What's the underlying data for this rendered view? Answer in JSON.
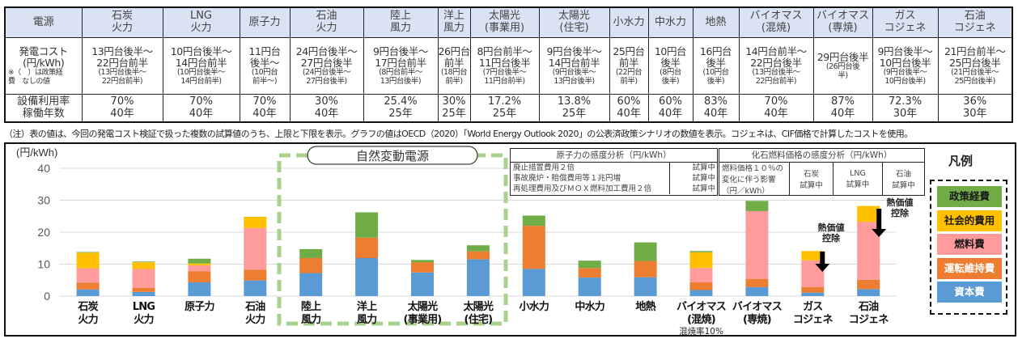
{
  "table": {
    "header_label": "電源",
    "columns": [
      [
        "石炭",
        "火力"
      ],
      [
        "LNG",
        "火力"
      ],
      [
        "原子力"
      ],
      [
        "石油",
        "火力"
      ],
      [
        "陸上",
        "風力"
      ],
      [
        "洋上",
        "風力"
      ],
      [
        "太陽光",
        "(事業用)"
      ],
      [
        "太陽光",
        "(住宅)"
      ],
      [
        "小水力"
      ],
      [
        "中水力"
      ],
      [
        "地熱"
      ],
      [
        "バイオマス",
        "(混焼)"
      ],
      [
        "バイオマス",
        "(専焼)"
      ],
      [
        "ガス",
        "コジェネ"
      ],
      [
        "石油",
        "コジェネ"
      ]
    ],
    "cost_label": [
      "発電コスト",
      "(円/kWh)"
    ],
    "cost_note": [
      "※（　）は政策経",
      "費　なしの値"
    ],
    "cost": [
      {
        "main": [
          "13円台後半〜",
          "22円台前半"
        ],
        "sub": [
          "(13円台後半〜",
          "22円台前半)"
        ]
      },
      {
        "main": [
          "10円台後半〜",
          "14円台前半"
        ],
        "sub": [
          "(10円台後半〜",
          "14円台前半)"
        ]
      },
      {
        "main": [
          "11円台",
          "後半〜"
        ],
        "sub": [
          "(10円台",
          "前半〜)"
        ]
      },
      {
        "main": [
          "24円台後半〜",
          "27円台後半"
        ],
        "sub": [
          "(24円台後半〜",
          "27円台後半)"
        ]
      },
      {
        "main": [
          "9円台後半〜",
          "17円台前半"
        ],
        "sub": [
          "(8円台前半〜",
          "13円台後半)"
        ]
      },
      {
        "main": [
          "26円台",
          "前半"
        ],
        "sub": [
          "(18円台",
          "前半)"
        ]
      },
      {
        "main": [
          "8円台前半〜",
          "11円台後半"
        ],
        "sub": [
          "(7円台後半〜",
          "11円台前半)"
        ]
      },
      {
        "main": [
          "9円台後半〜",
          "14円台前半"
        ],
        "sub": [
          "(9円台後半〜",
          "13円台後半)"
        ]
      },
      {
        "main": [
          "25円台",
          "前半"
        ],
        "sub": [
          "(22円台",
          "前半)"
        ]
      },
      {
        "main": [
          "10円台",
          "後半"
        ],
        "sub": [
          "(8円台",
          "後半)"
        ]
      },
      {
        "main": [
          "16円台",
          "後半"
        ],
        "sub": [
          "(10円台",
          "後半)"
        ]
      },
      {
        "main": [
          "14円台前半〜",
          "22円台後半"
        ],
        "sub": [
          "(13円台後半〜",
          "22円台前半)"
        ]
      },
      {
        "main": [
          "29円台後半"
        ],
        "sub": [
          "(26円台後",
          "半)"
        ]
      },
      {
        "main": [
          "9円台後半〜",
          "10円台後半"
        ],
        "sub": [
          "(9円台後半〜",
          "10円台後半)"
        ]
      },
      {
        "main": [
          "21円台前半〜",
          "25円台後半"
        ],
        "sub": [
          "(21円台後半〜",
          "25円台後半)"
        ]
      }
    ],
    "rate_label": [
      "設備利用率",
      "稼働年数"
    ],
    "rate": [
      [
        "70%",
        "40年"
      ],
      [
        "70%",
        "40年"
      ],
      [
        "70%",
        "40年"
      ],
      [
        "30%",
        "40年"
      ],
      [
        "25.4%",
        "25年"
      ],
      [
        "30%",
        "25年"
      ],
      [
        "17.2%",
        "25年"
      ],
      [
        "13.8%",
        "25年"
      ],
      [
        "60%",
        "40年"
      ],
      [
        "60%",
        "40年"
      ],
      [
        "83%",
        "40年"
      ],
      [
        "70%",
        "40年"
      ],
      [
        "87%",
        "40年"
      ],
      [
        "72.3%",
        "30年"
      ],
      [
        "36%",
        "30年"
      ]
    ]
  },
  "note": "（注）表の値は、今回の発電コスト検証で扱った複数の試算値のうち、上限と下限を表示。グラフの値はOECD（2020）「World Energy Outlook 2020」の公表済政策シナリオの数値を表示。コジェネは、CIF価格で計算したコストを使用。",
  "nuclear_sensitivity": {
    "title": "原子力の感度分析（円/kWh）",
    "rows": [
      [
        "廃止措置費用２倍",
        "試算中"
      ],
      [
        "事故廃炉・賠償費用等１兆円増",
        "試算中"
      ],
      [
        "再処理費用及びＭＯＸ燃料加工費用２倍",
        "試算中"
      ]
    ]
  },
  "fossil_sensitivity": {
    "title": "化石燃料価格の感度分析（円/kWh）",
    "label": [
      "燃料価格１０％の",
      "変化に伴う影響",
      "（円／kWh）"
    ],
    "cols": [
      [
        "石炭",
        "試算中"
      ],
      [
        "LNG",
        "試算中"
      ],
      [
        "石油",
        "試算中"
      ]
    ]
  },
  "legend": {
    "title": "凡例",
    "items": [
      {
        "key": "policy",
        "label": "政策経費",
        "color": "#70ad47",
        "text": "#1a1a1a"
      },
      {
        "key": "social",
        "label": "社会的費用",
        "color": "#ffc000",
        "text": "#1a1a1a"
      },
      {
        "key": "fuel",
        "label": "燃料費",
        "color": "#ff9b9b",
        "text": "#1a1a1a"
      },
      {
        "key": "om",
        "label": "運転維持費",
        "color": "#ed7d31",
        "text": "#ffffff"
      },
      {
        "key": "capital",
        "label": "資本費",
        "color": "#5b9bd5",
        "text": "#ffffff"
      }
    ]
  },
  "chart_data": {
    "type": "bar",
    "stacked": true,
    "ylabel": "(円/kWh)",
    "ylim": [
      0,
      40
    ],
    "yticks": [
      0,
      10,
      20,
      30,
      40
    ],
    "grid": true,
    "legend_position": "right",
    "group_label": "自然変動電源",
    "categories": [
      [
        "石炭",
        "火力"
      ],
      [
        "LNG",
        "火力"
      ],
      [
        "原子力"
      ],
      [
        "石油",
        "火力"
      ],
      [
        "陸上",
        "風力"
      ],
      [
        "洋上",
        "風力"
      ],
      [
        "太陽光",
        "(事業用)"
      ],
      [
        "太陽光",
        "(住宅)"
      ],
      [
        "小水力"
      ],
      [
        "中水力"
      ],
      [
        "地熱"
      ],
      [
        "バイオマス",
        "(混焼)"
      ],
      [
        "バイオマス",
        "(専焼)"
      ],
      [
        "ガス",
        "コジェネ"
      ],
      [
        "石油",
        "コジェネ"
      ]
    ],
    "series": [
      {
        "name": "資本費",
        "key": "capital",
        "color": "#5b9bd5",
        "values": [
          2.1,
          1.3,
          4.3,
          4.9,
          7.2,
          11.9,
          7.4,
          11.5,
          8.5,
          5.8,
          5.9,
          1.9,
          2.8,
          1.1,
          2.2
        ]
      },
      {
        "name": "運転維持費",
        "key": "om",
        "color": "#ed7d31",
        "values": [
          2.1,
          1.3,
          3.5,
          3.4,
          4.7,
          6.4,
          3.2,
          2.5,
          13.5,
          3.0,
          5.1,
          2.4,
          2.6,
          1.7,
          2.9
        ]
      },
      {
        "name": "燃料費",
        "key": "fuel",
        "color": "#ff9b9b",
        "values": [
          4.5,
          5.9,
          1.8,
          13.0,
          0,
          0,
          0,
          0,
          0,
          0,
          0,
          4.5,
          21.2,
          8.4,
          18.1
        ]
      },
      {
        "name": "社会的費用",
        "key": "social",
        "color": "#ffc000",
        "values": [
          4.9,
          2.1,
          0.6,
          3.5,
          0,
          0,
          0,
          0,
          0,
          0,
          0,
          4.9,
          0,
          2.9,
          5.0
        ]
      },
      {
        "name": "政策経費",
        "key": "policy",
        "color": "#70ad47",
        "values": [
          0.2,
          0.2,
          1.5,
          0,
          2.8,
          7.9,
          0.7,
          1.9,
          3.2,
          2.3,
          5.8,
          0.4,
          3.2,
          0,
          0
        ]
      }
    ],
    "annotations": {
      "cofiring_note": "混焼率10%",
      "heat_value_deduction": [
        "熱価値",
        "控除"
      ]
    }
  }
}
